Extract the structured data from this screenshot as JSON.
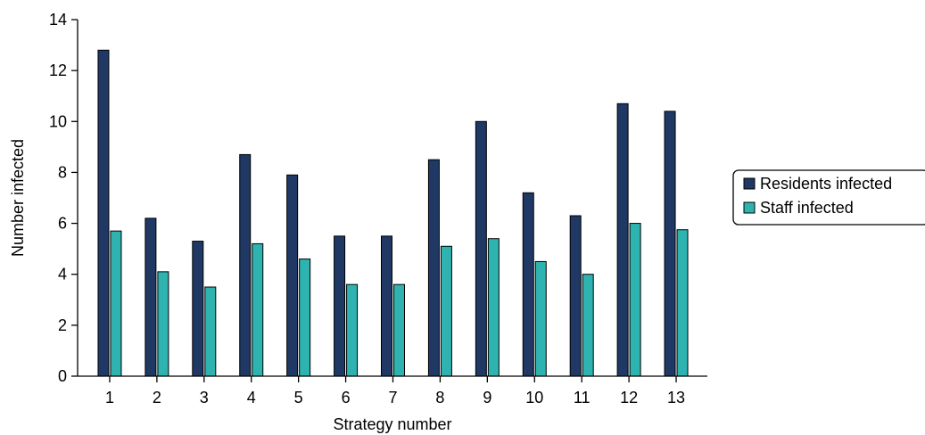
{
  "chart_data": {
    "type": "bar",
    "title": "",
    "xlabel": "Strategy number",
    "ylabel": "Number infected",
    "categories": [
      "1",
      "2",
      "3",
      "4",
      "5",
      "6",
      "7",
      "8",
      "9",
      "10",
      "11",
      "12",
      "13"
    ],
    "ylim": [
      0,
      14
    ],
    "yticks": [
      0,
      2,
      4,
      6,
      8,
      10,
      12,
      14
    ],
    "grid": false,
    "legend_position": "right",
    "series": [
      {
        "name": "Residents infected",
        "color": "#1f3864",
        "values": [
          12.8,
          6.2,
          5.3,
          8.7,
          7.9,
          5.5,
          5.5,
          8.5,
          10.0,
          7.2,
          6.3,
          10.7,
          10.4
        ]
      },
      {
        "name": "Staff infected",
        "color": "#2eb3b0",
        "values": [
          5.7,
          4.1,
          3.5,
          5.2,
          4.6,
          3.6,
          3.6,
          5.1,
          5.4,
          4.5,
          4.0,
          6.0,
          5.75
        ]
      }
    ]
  }
}
